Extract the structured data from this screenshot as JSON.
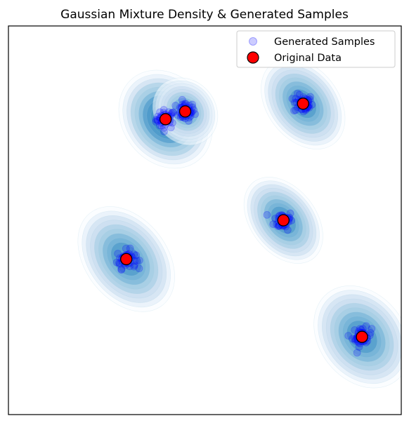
{
  "chart_data": {
    "type": "scatter",
    "title": "Gaussian Mixture Density & Generated Samples",
    "xlabel": "",
    "ylabel": "",
    "xlim": [
      0,
      10
    ],
    "ylim": [
      0,
      10
    ],
    "ticks_visible": false,
    "grid": false,
    "legend_position": "top-right",
    "components": [
      {
        "mean": [
          4.0,
          7.6
        ],
        "weight": 1.0,
        "spread": [
          0.42,
          0.52
        ]
      },
      {
        "mean": [
          4.5,
          7.8
        ],
        "weight": 0.7,
        "spread": [
          0.3,
          0.35
        ]
      },
      {
        "mean": [
          7.5,
          8.0
        ],
        "weight": 0.85,
        "spread": [
          0.35,
          0.5
        ]
      },
      {
        "mean": [
          7.0,
          5.0
        ],
        "weight": 0.75,
        "spread": [
          0.32,
          0.48
        ]
      },
      {
        "mean": [
          3.0,
          4.0
        ],
        "weight": 0.85,
        "spread": [
          0.4,
          0.58
        ]
      },
      {
        "mean": [
          9.0,
          2.0
        ],
        "weight": 0.85,
        "spread": [
          0.42,
          0.55
        ]
      }
    ],
    "series": [
      {
        "name": "Generated Samples",
        "marker": "circle",
        "color": "#0000ff",
        "alpha": 0.2,
        "clusters": [
          {
            "center": [
              4.0,
              7.6
            ],
            "count": 45
          },
          {
            "center": [
              4.5,
              7.8
            ],
            "count": 45
          },
          {
            "center": [
              7.5,
              8.0
            ],
            "count": 45
          },
          {
            "center": [
              7.0,
              5.0
            ],
            "count": 45
          },
          {
            "center": [
              3.0,
              4.0
            ],
            "count": 45
          },
          {
            "center": [
              9.0,
              2.0
            ],
            "count": 45
          }
        ]
      },
      {
        "name": "Original Data",
        "marker": "circle",
        "color": "#ff0000",
        "edgecolor": "#000000",
        "points": [
          {
            "x": 4.0,
            "y": 7.6
          },
          {
            "x": 4.5,
            "y": 7.8
          },
          {
            "x": 7.5,
            "y": 8.0
          },
          {
            "x": 7.0,
            "y": 5.0
          },
          {
            "x": 3.0,
            "y": 4.0
          },
          {
            "x": 9.0,
            "y": 2.0
          }
        ]
      }
    ],
    "colormap": [
      "#f7fbff",
      "#deebf7",
      "#c6dbef",
      "#9ecae1",
      "#6baed6",
      "#4292c6"
    ]
  }
}
